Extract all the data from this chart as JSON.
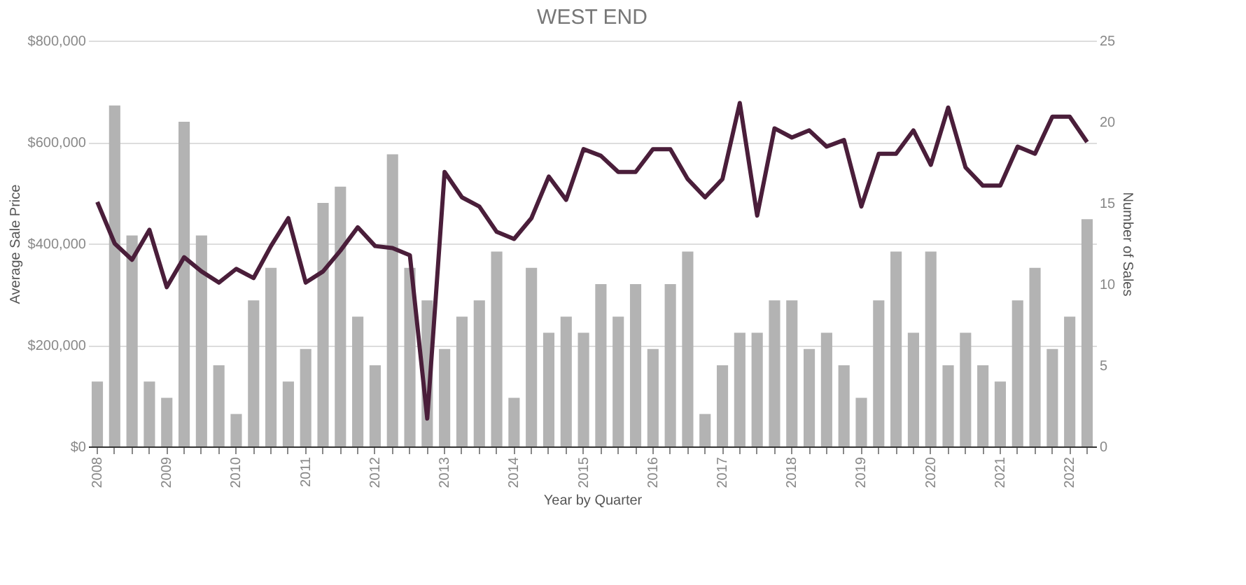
{
  "chart_data": {
    "type": "bar",
    "title": "WEST END",
    "xlabel": "Year by Quarter",
    "ylabel": "Average Sale Price",
    "y2label": "Number of Sales",
    "categories": [
      "2008",
      null,
      null,
      null,
      "2009",
      null,
      null,
      null,
      "2010",
      null,
      null,
      null,
      "2011",
      null,
      null,
      null,
      "2012",
      null,
      null,
      null,
      "2013",
      null,
      null,
      null,
      "2014",
      null,
      null,
      null,
      "2015",
      null,
      null,
      null,
      "2016",
      null,
      null,
      null,
      "2017",
      null,
      null,
      null,
      "2018",
      null,
      null,
      null,
      "2019",
      null,
      null,
      null,
      "2020",
      null,
      null,
      null,
      "2021",
      null,
      null,
      null,
      "2022",
      null
    ],
    "series": [
      {
        "axis": "y2",
        "color": "#b3b3b3",
        "values": [
          4,
          21,
          13,
          4,
          3,
          20,
          13,
          5,
          2,
          9,
          11,
          4,
          6,
          15,
          16,
          8,
          5,
          18,
          11,
          9,
          6,
          8,
          9,
          12,
          3,
          11,
          7,
          8,
          7,
          10,
          8,
          10,
          6,
          10,
          12,
          2,
          5,
          7,
          7,
          9,
          9,
          6,
          7,
          5,
          3,
          9,
          12,
          7,
          12,
          5,
          7,
          5,
          4,
          9,
          11,
          6,
          8,
          14
        ]
      },
      {
        "type": "line",
        "axis": "y",
        "color": "#4a1e3a",
        "values": [
          482000,
          400000,
          368000,
          427000,
          314000,
          373000,
          345000,
          323000,
          350000,
          332000,
          395000,
          450000,
          323000,
          345000,
          386000,
          432000,
          395000,
          391000,
          377000,
          55000,
          541000,
          491000,
          473000,
          423000,
          409000,
          450000,
          532000,
          486000,
          586000,
          573000,
          541000,
          541000,
          586000,
          586000,
          527000,
          491000,
          527000,
          677000,
          455000,
          627000,
          609000,
          623000,
          591000,
          604000,
          473000,
          577000,
          577000,
          623000,
          555000,
          668000,
          550000,
          514000,
          514000,
          591000,
          577000,
          650000,
          650000,
          600000
        ]
      }
    ],
    "ylim": [
      0,
      800000
    ],
    "yticks": [
      {
        "value": 0,
        "label": "$0"
      },
      {
        "value": 200000,
        "label": "$200,000"
      },
      {
        "value": 400000,
        "label": "$400,000"
      },
      {
        "value": 600000,
        "label": "$600,000"
      },
      {
        "value": 800000,
        "label": "$800,000"
      }
    ],
    "y2lim": [
      0,
      25
    ],
    "y2ticks": [
      0,
      5,
      10,
      15,
      20,
      25
    ],
    "grid": "y",
    "marker": "none",
    "line_style": "solid"
  }
}
